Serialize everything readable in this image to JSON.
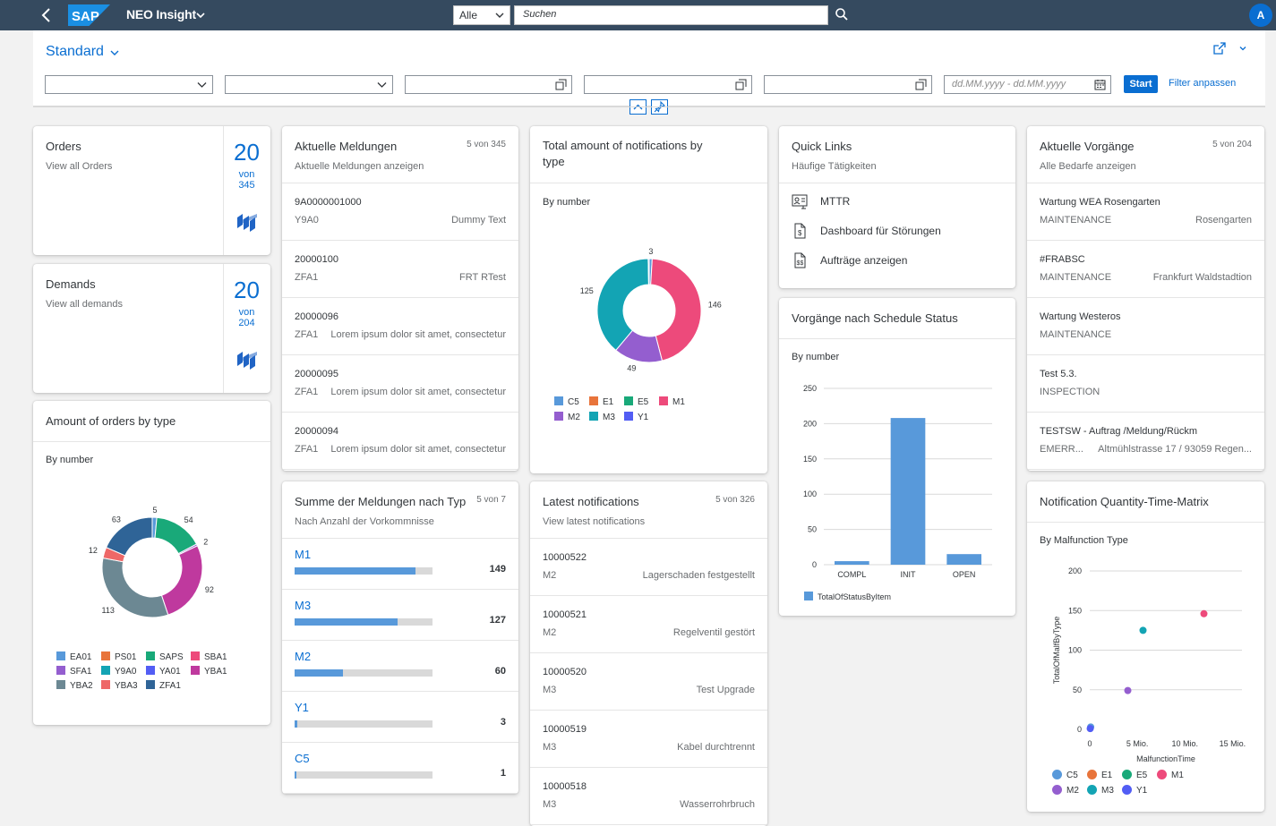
{
  "shell": {
    "logo_text": "SAP",
    "app_title": "NEO Insight",
    "scope": "Alle",
    "search_placeholder": "Suchen",
    "avatar_initial": "A",
    "brand_color": "#0a6ed1"
  },
  "filter_bar": {
    "variant": "Standard",
    "date_placeholder": "dd.MM.yyyy - dd.MM.yyyy",
    "start_label": "Start",
    "adapt_label": "Filter anpassen"
  },
  "orders_card": {
    "title": "Orders",
    "subtitle": "View all Orders",
    "value": "20",
    "of_label": "von",
    "total": "345"
  },
  "demands_card": {
    "title": "Demands",
    "subtitle": "View all demands",
    "value": "20",
    "of_label": "von",
    "total": "204"
  },
  "orders_by_type": {
    "title": "Amount of orders by type",
    "chart_label": "By number",
    "chart_data": {
      "type": "pie",
      "categories": [
        "EA01",
        "PS01",
        "SAPS",
        "SBA1",
        "SFA1",
        "Y9A0",
        "YA01",
        "YBA1",
        "YBA2",
        "YBA3",
        "ZFA1"
      ],
      "values": [
        5,
        0,
        54,
        0,
        2,
        0,
        0,
        92,
        113,
        12,
        63
      ],
      "colors": [
        "#5899da",
        "#e8743b",
        "#19a979",
        "#ed4a7b",
        "#945ecf",
        "#13a4b4",
        "#525df4",
        "#bf399e",
        "#6c8893",
        "#ee6868",
        "#2f6497"
      ],
      "data_labels": [
        "5",
        "",
        "54",
        "",
        "2",
        "",
        "",
        "92",
        "113",
        "12",
        "63"
      ]
    }
  },
  "aktuelle_meldungen": {
    "title": "Aktuelle Meldungen",
    "subtitle": "Aktuelle Meldungen anzeigen",
    "count": "5 von 345",
    "items": [
      {
        "title": "9A0000001000",
        "type": "Y9A0",
        "desc": "Dummy Text"
      },
      {
        "title": "20000100",
        "type": "ZFA1",
        "desc": "FRT RTest"
      },
      {
        "title": "20000096",
        "type": "ZFA1",
        "desc": "Lorem ipsum dolor sit amet, consectetur"
      },
      {
        "title": "20000095",
        "type": "ZFA1",
        "desc": "Lorem ipsum dolor sit amet, consectetur"
      },
      {
        "title": "20000094",
        "type": "ZFA1",
        "desc": "Lorem ipsum dolor sit amet, consectetur"
      }
    ]
  },
  "summe_meldungen": {
    "title": "Summe der Meldungen nach Typ",
    "subtitle": "Nach Anzahl der Vorkommnisse",
    "count": "5 von 7",
    "max": 170,
    "rows": [
      {
        "name": "M1",
        "value": 149
      },
      {
        "name": "M3",
        "value": 127
      },
      {
        "name": "M2",
        "value": 60
      },
      {
        "name": "Y1",
        "value": 3
      },
      {
        "name": "C5",
        "value": 1
      }
    ]
  },
  "notifications_by_type": {
    "title": "Total amount of notifications by type",
    "chart_label": "By number",
    "chart_data": {
      "type": "pie",
      "categories": [
        "C5",
        "E1",
        "E5",
        "M1",
        "M2",
        "M3",
        "Y1"
      ],
      "values": [
        3,
        0,
        0,
        146,
        49,
        125,
        1
      ],
      "colors": [
        "#5899da",
        "#e8743b",
        "#19a979",
        "#ed4a7b",
        "#945ecf",
        "#13a4b4",
        "#525df4"
      ],
      "data_labels": [
        "3",
        "",
        "",
        "146",
        "49",
        "125",
        ""
      ]
    }
  },
  "latest_notifications": {
    "title": "Latest notifications",
    "subtitle": "View latest notifications",
    "count": "5 von 326",
    "items": [
      {
        "title": "10000522",
        "type": "M2",
        "desc": "Lagerschaden festgestellt"
      },
      {
        "title": "10000521",
        "type": "M2",
        "desc": "Regelventil gestört"
      },
      {
        "title": "10000520",
        "type": "M3",
        "desc": "Test Upgrade"
      },
      {
        "title": "10000519",
        "type": "M3",
        "desc": "Kabel durchtrennt"
      },
      {
        "title": "10000518",
        "type": "M3",
        "desc": "Wasserrohrbruch"
      }
    ]
  },
  "quick_links": {
    "title": "Quick Links",
    "subtitle": "Häufige Tätigkeiten",
    "items": [
      {
        "label": "MTTR",
        "icon": "person-chart-icon"
      },
      {
        "label": "Dashboard für Störungen",
        "icon": "document-dollar-icon"
      },
      {
        "label": "Aufträge anzeigen",
        "icon": "document-table-icon"
      }
    ]
  },
  "schedule_status": {
    "title": "Vorgänge nach Schedule Status",
    "chart_label": "By number",
    "chart_data": {
      "type": "bar",
      "categories": [
        "COMPL",
        "INIT",
        "OPEN"
      ],
      "series": [
        {
          "name": "TotalOfStatusByItem",
          "values": [
            5,
            208,
            15
          ]
        }
      ],
      "ylim": [
        0,
        250
      ],
      "yticks": [
        0,
        50,
        100,
        150,
        200,
        250
      ],
      "color": "#5899da"
    }
  },
  "aktuelle_vorgaenge": {
    "title": "Aktuelle Vorgänge",
    "subtitle": "Alle Bedarfe anzeigen",
    "count": "5 von 204",
    "items": [
      {
        "title": "Wartung WEA Rosengarten",
        "type": "MAINTENANCE",
        "desc": "Rosengarten"
      },
      {
        "title": "#FRABSC",
        "type": "MAINTENANCE",
        "desc": "Frankfurt Waldstadtion"
      },
      {
        "title": "Wartung Westeros",
        "type": "MAINTENANCE",
        "desc": ""
      },
      {
        "title": "Test 5.3.",
        "type": "INSPECTION",
        "desc": ""
      },
      {
        "title": "TESTSW - Auftrag /Meldung/Rückm",
        "type": "EMERR...",
        "desc": "Altmühlstrasse 17 / 93059 Regen..."
      }
    ]
  },
  "quantity_time_matrix": {
    "title": "Notification Quantity-Time-Matrix",
    "chart_label": "By Malfunction Type",
    "chart_data": {
      "type": "scatter",
      "xlabel": "MalfunctionTime",
      "ylabel": "TotalOfMalfByType",
      "xlim": [
        0,
        16000000
      ],
      "ylim": [
        0,
        200
      ],
      "xticks": [
        0,
        5000000,
        10000000,
        15000000
      ],
      "xtick_labels": [
        "0",
        "5 Mio.",
        "10 Mio.",
        "15 Mio."
      ],
      "yticks": [
        0,
        50,
        100,
        150,
        200
      ],
      "series": [
        {
          "name": "C5",
          "color": "#5899da",
          "points": [
            [
              100000,
              3
            ]
          ]
        },
        {
          "name": "E1",
          "color": "#e8743b",
          "points": []
        },
        {
          "name": "E5",
          "color": "#19a979",
          "points": []
        },
        {
          "name": "M1",
          "color": "#ed4a7b",
          "points": [
            [
              12000000,
              146
            ]
          ]
        },
        {
          "name": "M2",
          "color": "#945ecf",
          "points": [
            [
              4000000,
              49
            ]
          ]
        },
        {
          "name": "M3",
          "color": "#13a4b4",
          "points": [
            [
              5600000,
              125
            ]
          ]
        },
        {
          "name": "Y1",
          "color": "#525df4",
          "points": [
            [
              50000,
              1
            ]
          ]
        }
      ]
    }
  }
}
